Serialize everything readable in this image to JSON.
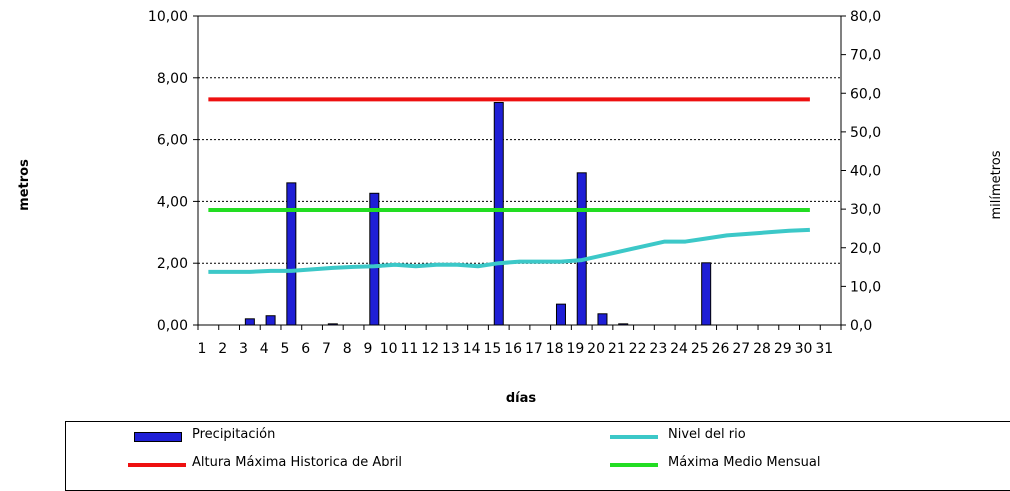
{
  "chart_data": {
    "type": "bar+line",
    "title": "",
    "xlabel": "días",
    "ylabel_left": "metros",
    "ylabel_right": "milímetros",
    "categories": [
      "1",
      "2",
      "3",
      "4",
      "5",
      "6",
      "7",
      "8",
      "9",
      "10",
      "11",
      "12",
      "13",
      "14",
      "15",
      "16",
      "17",
      "18",
      "19",
      "20",
      "21",
      "22",
      "23",
      "24",
      "25",
      "26",
      "27",
      "28",
      "29",
      "30",
      "31"
    ],
    "y_left": {
      "min": 0,
      "max": 10,
      "ticks": [
        "0,00",
        "2,00",
        "4,00",
        "6,00",
        "8,00",
        "10,00"
      ]
    },
    "y_right": {
      "min": 0,
      "max": 80,
      "ticks": [
        "0,0",
        "10,0",
        "20,0",
        "30,0",
        "40,0",
        "50,0",
        "60,0",
        "70,0",
        "80,0"
      ]
    },
    "series": [
      {
        "name": "Precipitación",
        "type": "bar",
        "axis": "right",
        "color": "#1f1fd6",
        "values": [
          0,
          0,
          1.6,
          2.4,
          36.8,
          0,
          0.3,
          0,
          34.1,
          0,
          0,
          0,
          0,
          0,
          57.6,
          0,
          0,
          5.4,
          39.4,
          2.9,
          0.3,
          0,
          0,
          0,
          16.1,
          0,
          0,
          0,
          0,
          0,
          0
        ]
      },
      {
        "name": "Nivel del rio",
        "type": "line",
        "axis": "left",
        "color": "#3cc8c8",
        "values": [
          1.72,
          1.72,
          1.72,
          1.75,
          1.75,
          1.8,
          1.85,
          1.88,
          1.9,
          1.95,
          1.9,
          1.95,
          1.95,
          1.9,
          2.0,
          2.05,
          2.05,
          2.05,
          2.1,
          2.25,
          2.4,
          2.55,
          2.7,
          2.7,
          2.8,
          2.9,
          2.95,
          3.0,
          3.05,
          3.08,
          3.08
        ]
      },
      {
        "name": "Altura Máxima Historica de Abril",
        "type": "hline",
        "axis": "left",
        "color": "#ee1010",
        "value": 7.3
      },
      {
        "name": "Máxima Medio Mensual",
        "type": "hline",
        "axis": "left",
        "color": "#22dd22",
        "value": 3.72
      }
    ],
    "grid": "horizontal dashed",
    "legend_placement": "bottom"
  }
}
